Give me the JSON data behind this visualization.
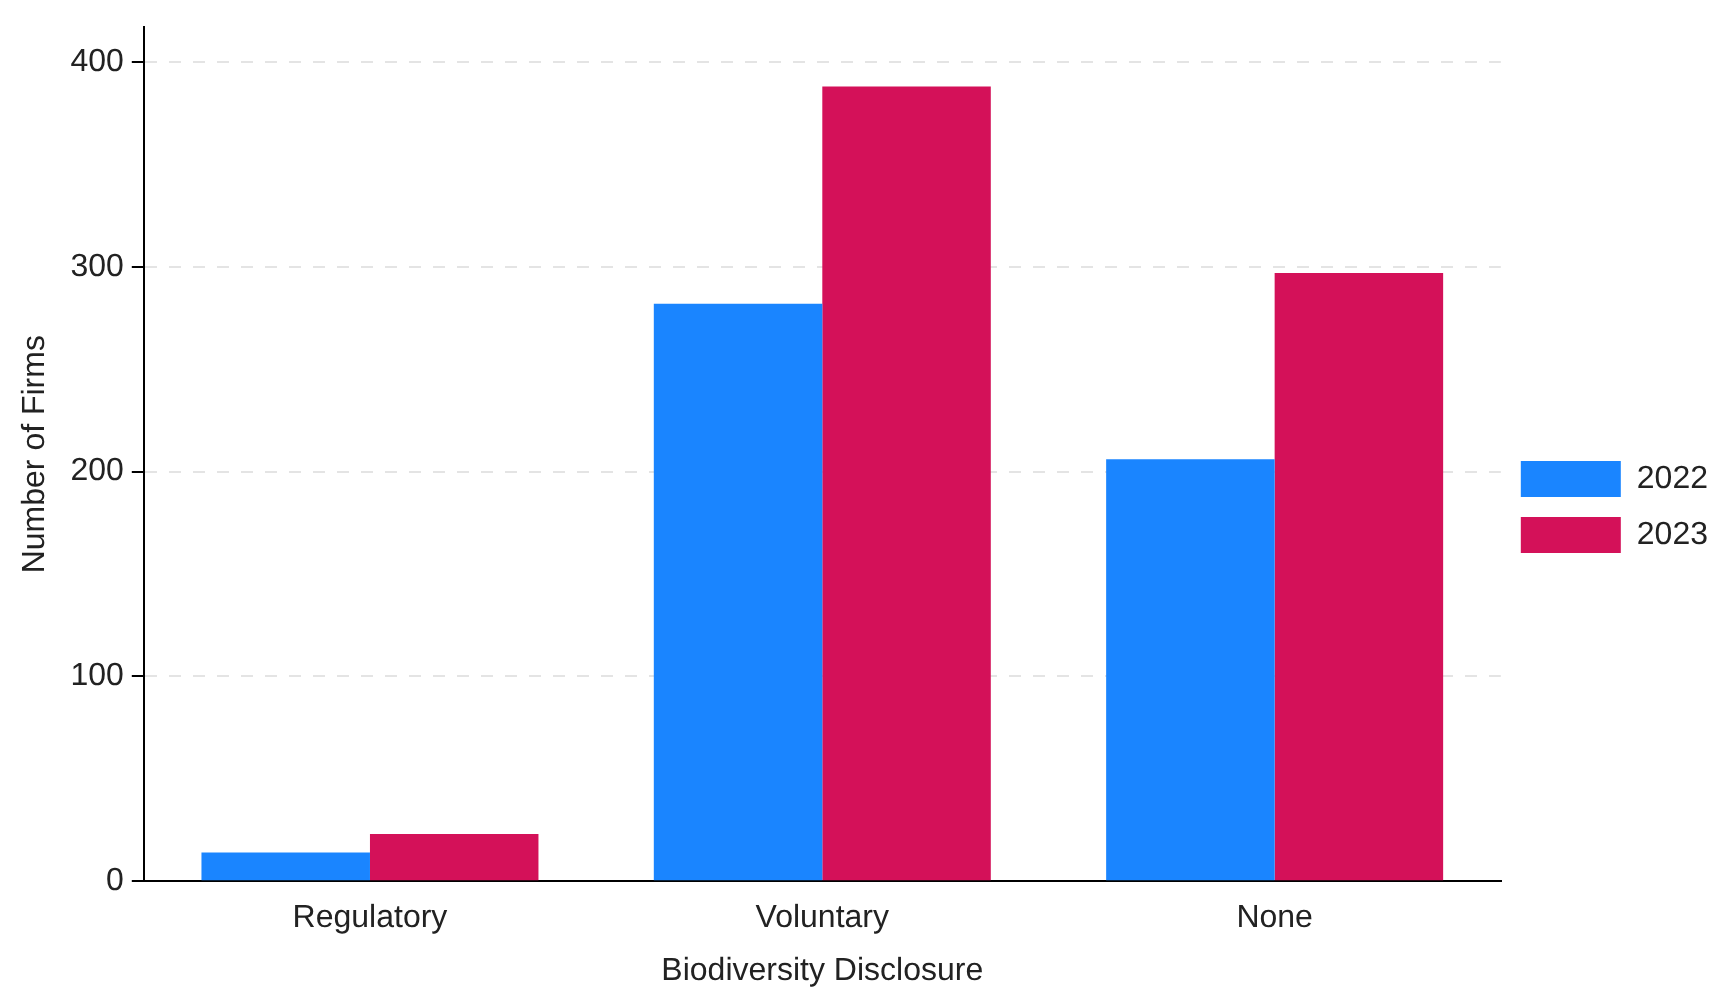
{
  "chart_data": {
    "type": "bar",
    "xlabel": "Biodiversity Disclosure",
    "ylabel": "Number of Firms",
    "categories": [
      "Regulatory",
      "Voluntary",
      "None"
    ],
    "series": [
      {
        "name": "2022",
        "color": "#1a85ff",
        "values": [
          14,
          282,
          206
        ]
      },
      {
        "name": "2023",
        "color": "#d41159",
        "values": [
          23,
          388,
          297
        ]
      }
    ],
    "ylim": [
      0,
      417
    ],
    "yticks": [
      0,
      100,
      200,
      300,
      400
    ],
    "grid": "y",
    "legend": "right"
  }
}
